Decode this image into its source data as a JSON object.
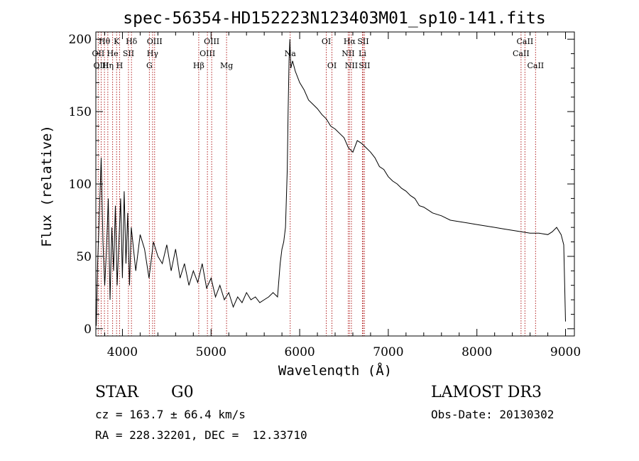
{
  "chart_data": {
    "type": "line",
    "title": "spec-56354-HD152223N123403M01_sp10-141.fits",
    "xlabel": "Wavelength (Å)",
    "ylabel": "Flux (relative)",
    "xlim": [
      3700,
      9100
    ],
    "ylim": [
      -5,
      205
    ],
    "xticks": [
      4000,
      5000,
      6000,
      7000,
      8000,
      9000
    ],
    "yticks": [
      0,
      50,
      100,
      150,
      200
    ],
    "series": [
      {
        "name": "flux",
        "x": [
          3705,
          3720,
          3740,
          3760,
          3780,
          3800,
          3820,
          3840,
          3860,
          3880,
          3900,
          3920,
          3940,
          3960,
          3980,
          4000,
          4020,
          4040,
          4060,
          4080,
          4100,
          4150,
          4200,
          4250,
          4300,
          4350,
          4400,
          4450,
          4500,
          4550,
          4600,
          4650,
          4700,
          4750,
          4800,
          4850,
          4900,
          4950,
          5000,
          5050,
          5100,
          5150,
          5200,
          5250,
          5300,
          5350,
          5400,
          5450,
          5500,
          5550,
          5600,
          5650,
          5700,
          5750,
          5780,
          5800,
          5820,
          5840,
          5860,
          5870,
          5880,
          5890,
          5900,
          5920,
          5950,
          6000,
          6050,
          6100,
          6150,
          6200,
          6250,
          6300,
          6350,
          6400,
          6450,
          6500,
          6550,
          6600,
          6650,
          6700,
          6750,
          6800,
          6850,
          6900,
          6950,
          7000,
          7050,
          7100,
          7150,
          7200,
          7250,
          7300,
          7350,
          7400,
          7450,
          7500,
          7600,
          7700,
          7800,
          7900,
          8000,
          8100,
          8200,
          8300,
          8400,
          8500,
          8600,
          8700,
          8800,
          8850,
          8900,
          8950,
          8980,
          9000
        ],
        "y": [
          2,
          45,
          80,
          118,
          60,
          30,
          55,
          90,
          20,
          70,
          40,
          85,
          30,
          60,
          90,
          35,
          95,
          45,
          80,
          30,
          70,
          40,
          65,
          55,
          35,
          60,
          50,
          45,
          58,
          40,
          55,
          35,
          45,
          30,
          40,
          32,
          45,
          28,
          35,
          22,
          30,
          20,
          25,
          15,
          22,
          18,
          25,
          20,
          22,
          18,
          20,
          22,
          25,
          22,
          45,
          55,
          60,
          70,
          110,
          150,
          185,
          200,
          180,
          185,
          178,
          170,
          165,
          158,
          155,
          152,
          148,
          145,
          140,
          138,
          135,
          132,
          125,
          122,
          130,
          128,
          125,
          122,
          118,
          112,
          110,
          105,
          102,
          100,
          97,
          95,
          92,
          90,
          85,
          84,
          82,
          80,
          78,
          75,
          74,
          73,
          72,
          71,
          70,
          69,
          68,
          67,
          66,
          66,
          65,
          67,
          70,
          65,
          58,
          5
        ]
      }
    ],
    "annotations": [
      {
        "label": "Hθ",
        "wavelength": 3797,
        "row": 1
      },
      {
        "label": "OII",
        "wavelength": 3727,
        "row": 2
      },
      {
        "label": "OIII",
        "wavelength": 3760,
        "row": 3
      },
      {
        "label": "He",
        "wavelength": 3889,
        "row": 2
      },
      {
        "label": "Hη",
        "wavelength": 3835,
        "row": 3
      },
      {
        "label": "K",
        "wavelength": 3934,
        "row": 1
      },
      {
        "label": "SII",
        "wavelength": 4068,
        "row": 2
      },
      {
        "label": "H",
        "wavelength": 3968,
        "row": 3
      },
      {
        "label": "Hδ",
        "wavelength": 4102,
        "row": 1
      },
      {
        "label": "OIII",
        "wavelength": 4363,
        "row": 1
      },
      {
        "label": "Hγ",
        "wavelength": 4340,
        "row": 2
      },
      {
        "label": "G",
        "wavelength": 4304,
        "row": 3
      },
      {
        "label": "Hβ",
        "wavelength": 4861,
        "row": 3
      },
      {
        "label": "OIII",
        "wavelength": 5007,
        "row": 1
      },
      {
        "label": "OIII",
        "wavelength": 4959,
        "row": 2
      },
      {
        "label": "Mg",
        "wavelength": 5175,
        "row": 3
      },
      {
        "label": "Na",
        "wavelength": 5893,
        "row": 2
      },
      {
        "label": "OI",
        "wavelength": 6300,
        "row": 1
      },
      {
        "label": "OI",
        "wavelength": 6364,
        "row": 3
      },
      {
        "label": "Hα",
        "wavelength": 6563,
        "row": 1
      },
      {
        "label": "SII",
        "wavelength": 6716,
        "row": 1
      },
      {
        "label": "NII",
        "wavelength": 6548,
        "row": 2
      },
      {
        "label": "Li",
        "wavelength": 6708,
        "row": 2
      },
      {
        "label": "NII",
        "wavelength": 6584,
        "row": 3
      },
      {
        "label": "SII",
        "wavelength": 6731,
        "row": 3
      },
      {
        "label": "CaII",
        "wavelength": 8542,
        "row": 1
      },
      {
        "label": "CaII",
        "wavelength": 8498,
        "row": 2
      },
      {
        "label": "CaII",
        "wavelength": 8662,
        "row": 3
      }
    ]
  },
  "info": {
    "class": "STAR",
    "subclass": "G0",
    "survey": "LAMOST DR3",
    "cz": "cz = 163.7 ± 66.4 km/s",
    "obs_date": "Obs-Date: 20130302",
    "radec": "RA = 228.32201, DEC =  12.33710"
  },
  "colors": {
    "line": "#000000",
    "annotation_line": "#b22222",
    "axes": "#000000"
  }
}
